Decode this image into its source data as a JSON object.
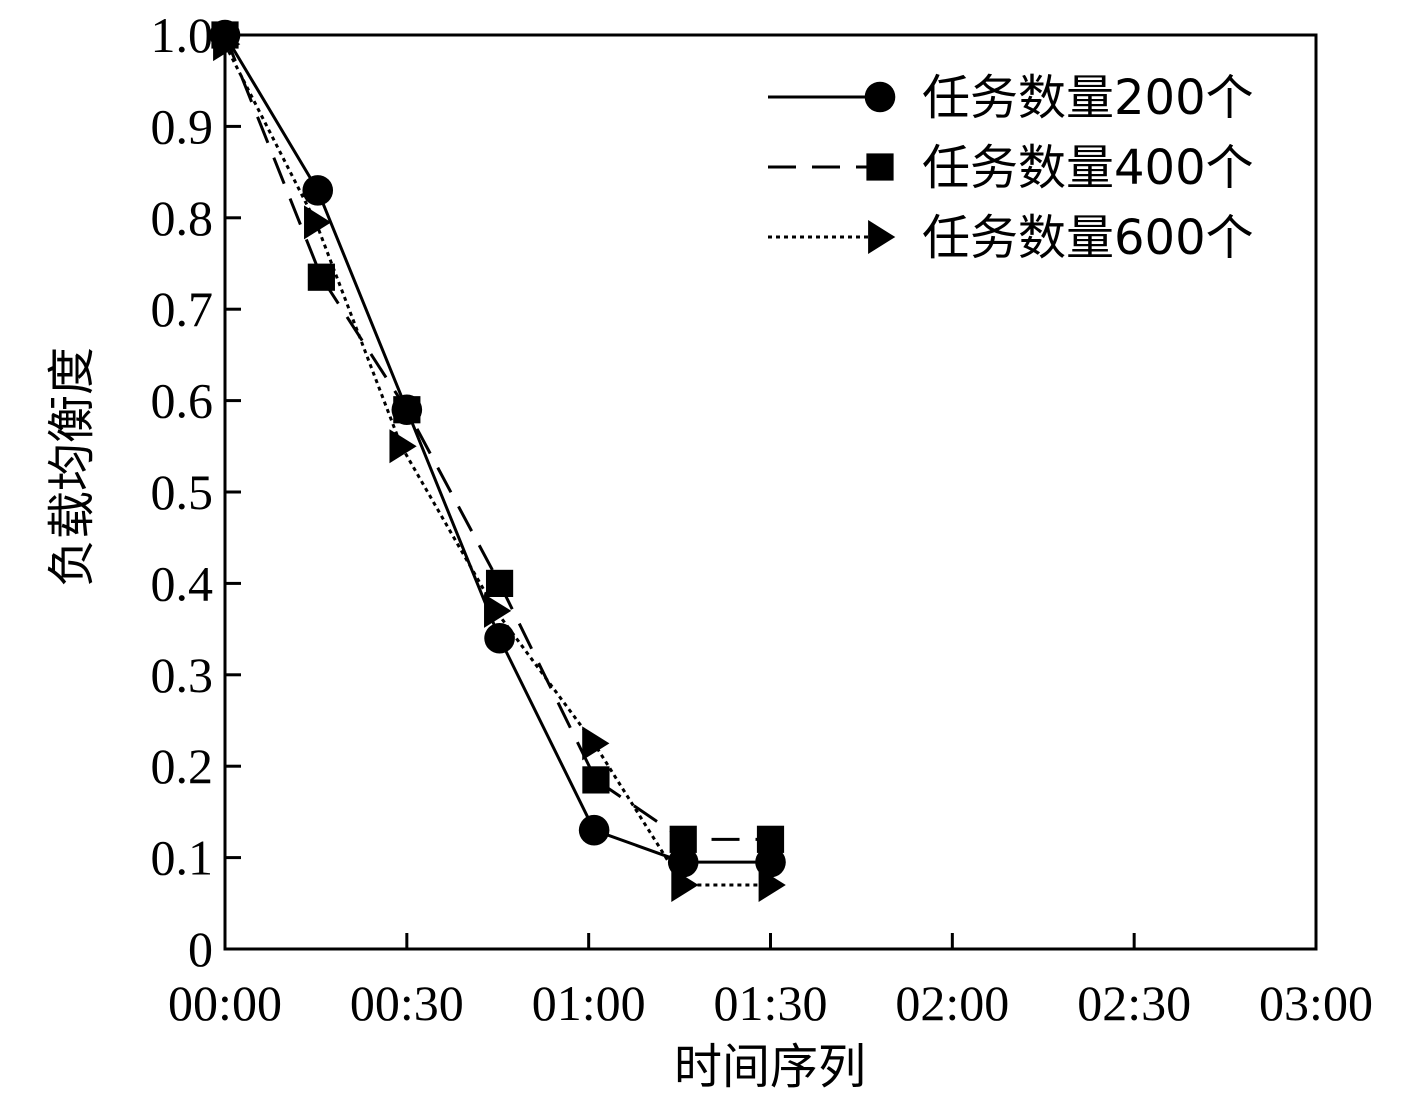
{
  "chart_data": {
    "type": "line",
    "xlabel": "时间序列",
    "ylabel": "负载均衡度",
    "ylim": [
      0,
      1.0
    ],
    "yticks": [
      "0",
      "0.1",
      "0.2",
      "0.3",
      "0.4",
      "0.5",
      "0.6",
      "0.7",
      "0.8",
      "0.9",
      "1.0"
    ],
    "categories": [
      "00:00",
      "00:30",
      "01:00",
      "01:30",
      "02:00",
      "02:30",
      "03:00"
    ],
    "grid": false,
    "legend_position": "top-right",
    "series": [
      {
        "name": "任务数量200个",
        "line_style": "solid",
        "marker": "circle",
        "x": [
          0,
          0.51,
          1.0,
          1.51,
          2.03,
          2.52,
          3.0
        ],
        "values": [
          1.0,
          0.83,
          0.59,
          0.34,
          0.13,
          0.095,
          0.095
        ]
      },
      {
        "name": "任务数量400个",
        "line_style": "dashed",
        "marker": "square",
        "x": [
          0,
          0.53,
          1.0,
          1.51,
          2.04,
          2.52,
          3.0
        ],
        "values": [
          1.0,
          0.735,
          0.59,
          0.4,
          0.185,
          0.12,
          0.12
        ]
      },
      {
        "name": "任务数量600个",
        "line_style": "dotted",
        "marker": "triangle",
        "x": [
          0,
          0.5,
          0.97,
          1.49,
          2.03,
          2.52,
          3.0
        ],
        "values": [
          0.99,
          0.795,
          0.55,
          0.37,
          0.225,
          0.07,
          0.07
        ]
      }
    ]
  }
}
